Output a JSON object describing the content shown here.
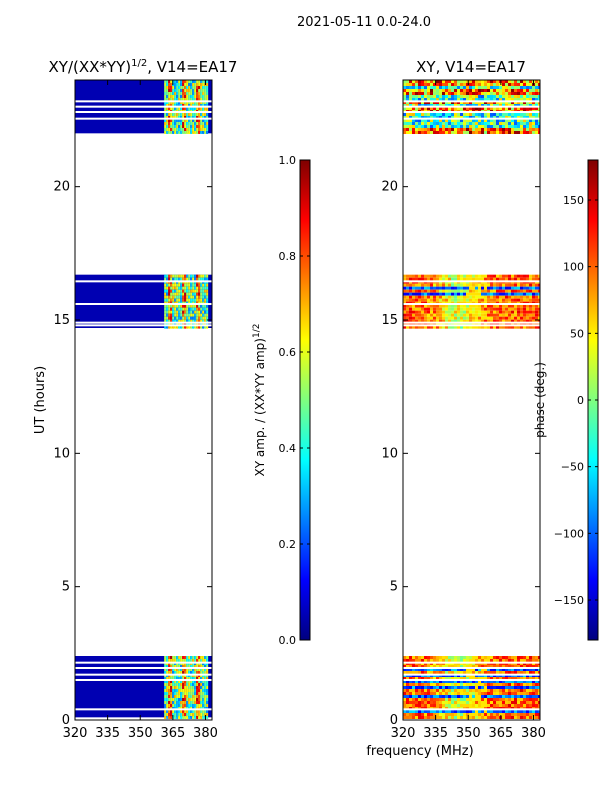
{
  "figure_title": "2021-05-11 0.0-24.0",
  "shared": {
    "ylabel": "UT (hours)",
    "xlabel": "frequency (MHz)"
  },
  "colors": {
    "jet": [
      "#00007f",
      "#0000ff",
      "#007fff",
      "#00ffff",
      "#7fff7f",
      "#ffff00",
      "#ff7f00",
      "#ff0000",
      "#7f0000"
    ],
    "axis": "#000000",
    "background": "#ffffff",
    "gap_line": "#ffffff"
  },
  "chart_data": [
    {
      "name": "amplitude-ratio",
      "type": "heatmap",
      "title": "XY/(XX*YY)",
      "title_sup": "1/2",
      "title_suffix": ", V14=EA17",
      "xlabel": "",
      "ylabel": "UT (hours)",
      "xlim": [
        320,
        383
      ],
      "ylim": [
        0,
        24
      ],
      "xticks": [
        320,
        335,
        350,
        365,
        380
      ],
      "yticks": [
        0,
        5,
        10,
        15,
        20
      ],
      "data_blocks": [
        {
          "t0": 0.1,
          "t1": 2.4
        },
        {
          "t0": 14.7,
          "t1": 16.7
        },
        {
          "t0": 22.0,
          "t1": 24.0
        }
      ],
      "gaps": [
        0.4,
        1.5,
        1.7,
        1.95,
        2.15,
        14.8,
        14.9,
        15.6,
        16.45,
        22.55,
        22.8,
        23.0,
        23.2
      ],
      "bright_band_mhz": [
        361,
        381
      ],
      "colorbar": {
        "label_main": "XY amp. / (XX*YY amp)",
        "label_sup": "1/2",
        "min": 0.0,
        "max": 1.0,
        "ticks": [
          "0.0",
          "0.2",
          "0.4",
          "0.6",
          "0.8",
          "1.0"
        ],
        "tick_values": [
          0.0,
          0.2,
          0.4,
          0.6,
          0.8,
          1.0
        ]
      }
    },
    {
      "name": "xy-phase",
      "type": "heatmap",
      "title": "XY, V14=EA17",
      "xlabel": "frequency (MHz)",
      "ylabel": "",
      "xlim": [
        320,
        383
      ],
      "ylim": [
        0,
        24
      ],
      "xticks": [
        320,
        335,
        350,
        365,
        380
      ],
      "yticks": [
        0,
        5,
        10,
        15,
        20
      ],
      "data_blocks": [
        {
          "t0": 0.1,
          "t1": 2.4
        },
        {
          "t0": 14.7,
          "t1": 16.7
        },
        {
          "t0": 22.0,
          "t1": 24.0
        }
      ],
      "gaps": [
        0.4,
        1.5,
        1.7,
        1.95,
        2.15,
        14.8,
        14.9,
        15.6,
        16.45,
        22.55,
        22.8,
        23.0,
        23.2
      ],
      "colorbar": {
        "label": "phase (deg.)",
        "min": -180,
        "max": 180,
        "ticks": [
          "150",
          "100",
          "50",
          "0",
          "−50",
          "−100",
          "−150"
        ],
        "tick_values": [
          150,
          100,
          50,
          0,
          -50,
          -100,
          -150
        ]
      }
    }
  ]
}
